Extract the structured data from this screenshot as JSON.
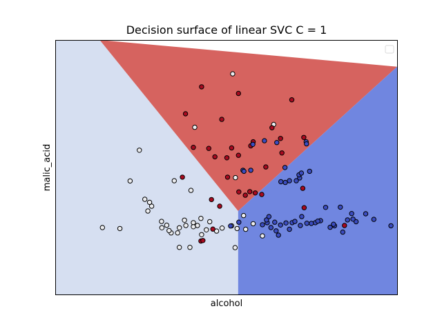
{
  "chart_data": {
    "type": "scatter",
    "title": "Decision surface of linear SVC C = 1",
    "xlabel": "alcohol",
    "ylabel": "malic_acid",
    "xlim": [
      0,
      10
    ],
    "ylim": [
      0,
      10
    ],
    "x_ticks_visible": false,
    "y_ticks_visible": false,
    "grid": false,
    "legend": {
      "placement": "top-right",
      "entries": []
    },
    "decision_surface": {
      "boundary_vertex": [
        5.35,
        3.28
      ],
      "regions": [
        {
          "class": 0,
          "color": "#d6dff1",
          "boundary_ends": [
            [
              1.3,
              10
            ],
            [
              5.35,
              0
            ]
          ]
        },
        {
          "class": 1,
          "color": "#d6635f",
          "boundary_ends": [
            [
              1.3,
              10
            ],
            [
              10,
              8.95
            ]
          ]
        },
        {
          "class": 2,
          "color": "#7086e0",
          "boundary_ends": [
            [
              10,
              8.95
            ],
            [
              5.35,
              0
            ]
          ]
        }
      ]
    },
    "point_colors": {
      "0": "#ecedf0",
      "1": "#a8091f",
      "2": "#3b4cc0"
    },
    "series": [
      {
        "class": 0,
        "points": [
          [
            5.19,
            8.67
          ],
          [
            4.08,
            6.57
          ],
          [
            2.46,
            5.67
          ],
          [
            6.39,
            6.68
          ],
          [
            3.48,
            4.47
          ],
          [
            2.19,
            4.46
          ],
          [
            2.71,
            3.28
          ],
          [
            2.82,
            3.47
          ],
          [
            2.76,
            3.62
          ],
          [
            2.62,
            3.74
          ],
          [
            1.89,
            2.59
          ],
          [
            3.11,
            2.87
          ],
          [
            3.26,
            2.72
          ],
          [
            3.39,
            2.42
          ],
          [
            3.63,
            2.62
          ],
          [
            3.82,
            2.71
          ],
          [
            4.04,
            2.82
          ],
          [
            4.16,
            2.71
          ],
          [
            4.42,
            2.54
          ],
          [
            4.88,
            2.61
          ],
          [
            5.16,
            2.7
          ],
          [
            5.32,
            2.59
          ],
          [
            5.79,
            2.78
          ],
          [
            3.63,
            1.85
          ],
          [
            3.94,
            1.85
          ],
          [
            3.12,
            2.62
          ],
          [
            4.26,
            2.99
          ],
          [
            4.52,
            2.86
          ],
          [
            3.78,
            2.92
          ],
          [
            4.28,
            2.35
          ],
          [
            3.58,
            2.42
          ],
          [
            4.04,
            2.66
          ],
          [
            1.38,
            2.63
          ],
          [
            5.57,
            2.56
          ],
          [
            4.72,
            2.49
          ],
          [
            6.06,
            2.3
          ],
          [
            5.51,
            3.1
          ],
          [
            5.26,
            1.84
          ],
          [
            5.27,
            4.59
          ],
          [
            3.97,
            4.09
          ],
          [
            3.33,
            2.51
          ]
        ]
      },
      {
        "class": 1,
        "points": [
          [
            4.28,
            8.16
          ],
          [
            5.36,
            7.9
          ],
          [
            6.92,
            7.65
          ],
          [
            3.81,
            7.1
          ],
          [
            4.87,
            6.88
          ],
          [
            6.34,
            6.55
          ],
          [
            6.59,
            6.13
          ],
          [
            7.27,
            6.17
          ],
          [
            5.16,
            5.76
          ],
          [
            5.72,
            5.84
          ],
          [
            4.04,
            5.78
          ],
          [
            4.49,
            5.74
          ],
          [
            5.79,
            6.0
          ],
          [
            6.63,
            5.56
          ],
          [
            4.67,
            5.41
          ],
          [
            5.02,
            5.37
          ],
          [
            5.36,
            5.47
          ],
          [
            6.16,
            5.01
          ],
          [
            3.72,
            4.61
          ],
          [
            5.04,
            4.61
          ],
          [
            7.24,
            4.17
          ],
          [
            5.37,
            4.03
          ],
          [
            5.69,
            4.04
          ],
          [
            5.56,
            3.9
          ],
          [
            5.85,
            3.99
          ],
          [
            7.28,
            3.41
          ],
          [
            4.57,
            3.73
          ],
          [
            4.81,
            3.47
          ],
          [
            4.61,
            2.57
          ],
          [
            4.26,
            2.1
          ],
          [
            4.32,
            2.12
          ],
          [
            6.04,
            3.93
          ],
          [
            8.46,
            2.71
          ]
        ]
      },
      {
        "class": 2,
        "points": [
          [
            7.34,
            6.0
          ],
          [
            7.35,
            5.92
          ],
          [
            5.78,
            5.9
          ],
          [
            6.48,
            5.97
          ],
          [
            6.12,
            6.04
          ],
          [
            5.49,
            4.88
          ],
          [
            5.52,
            4.84
          ],
          [
            5.72,
            4.88
          ],
          [
            6.72,
            4.99
          ],
          [
            7.15,
            4.58
          ],
          [
            7.13,
            4.7
          ],
          [
            7.2,
            4.77
          ],
          [
            6.6,
            4.43
          ],
          [
            6.73,
            4.4
          ],
          [
            6.85,
            4.47
          ],
          [
            7.05,
            4.47
          ],
          [
            7.44,
            4.84
          ],
          [
            7.91,
            3.42
          ],
          [
            8.34,
            3.43
          ],
          [
            8.67,
            3.18
          ],
          [
            9.08,
            3.17
          ],
          [
            9.32,
            2.95
          ],
          [
            8.8,
            2.86
          ],
          [
            9.82,
            2.7
          ],
          [
            8.55,
            2.93
          ],
          [
            8.71,
            2.96
          ],
          [
            6.2,
            2.82
          ],
          [
            6.18,
            2.93
          ],
          [
            6.42,
            2.84
          ],
          [
            6.25,
            3.06
          ],
          [
            6.06,
            2.74
          ],
          [
            6.31,
            2.63
          ],
          [
            5.13,
            2.69
          ],
          [
            5.37,
            2.84
          ],
          [
            7.76,
            2.9
          ],
          [
            7.61,
            2.82
          ],
          [
            7.36,
            2.8
          ],
          [
            7.17,
            2.71
          ],
          [
            6.93,
            2.82
          ],
          [
            6.59,
            2.73
          ],
          [
            6.46,
            2.5
          ],
          [
            6.53,
            2.33
          ],
          [
            6.85,
            2.56
          ],
          [
            6.75,
            2.81
          ],
          [
            7.01,
            2.87
          ],
          [
            7.21,
            3.06
          ],
          [
            7.49,
            2.79
          ],
          [
            7.68,
            2.88
          ],
          [
            8.17,
            2.7
          ],
          [
            8.04,
            2.64
          ],
          [
            8.14,
            2.76
          ],
          [
            8.41,
            2.45
          ]
        ]
      }
    ]
  }
}
